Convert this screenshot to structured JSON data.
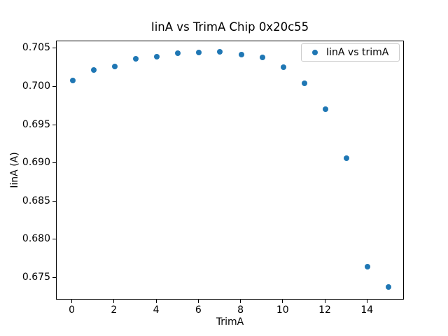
{
  "figure": {
    "background_color": "#ffffff",
    "text_color": "#000000"
  },
  "chart_data": {
    "type": "scatter",
    "title": "IinA vs TrimA Chip 0x20c55",
    "xlabel": "TrimA",
    "ylabel": "IinA (A)",
    "legend": {
      "label": "IinA vs trimA",
      "position": "upper right",
      "marker": "circle-marker-icon"
    },
    "series": [
      {
        "name": "IinA vs trimA",
        "x": [
          0,
          1,
          2,
          3,
          4,
          5,
          6,
          7,
          8,
          9,
          10,
          11,
          12,
          13,
          14,
          15
        ],
        "y": [
          0.7009,
          0.7022,
          0.7027,
          0.7037,
          0.704,
          0.7044,
          0.7045,
          0.7046,
          0.7043,
          0.7039,
          0.7026,
          0.7005,
          0.6971,
          0.6907,
          0.6765,
          0.6738
        ],
        "marker_color": "#1f77b4"
      }
    ],
    "xlim": [
      -0.75,
      15.75
    ],
    "ylim": [
      0.6721,
      0.706
    ],
    "xticks": [
      0,
      2,
      4,
      6,
      8,
      10,
      12,
      14
    ],
    "xtick_labels": [
      "0",
      "2",
      "4",
      "6",
      "8",
      "10",
      "12",
      "14"
    ],
    "yticks": [
      0.675,
      0.68,
      0.685,
      0.69,
      0.695,
      0.7,
      0.705
    ],
    "ytick_labels": [
      "0.675",
      "0.680",
      "0.685",
      "0.690",
      "0.695",
      "0.700",
      "0.705"
    ],
    "grid": false
  }
}
